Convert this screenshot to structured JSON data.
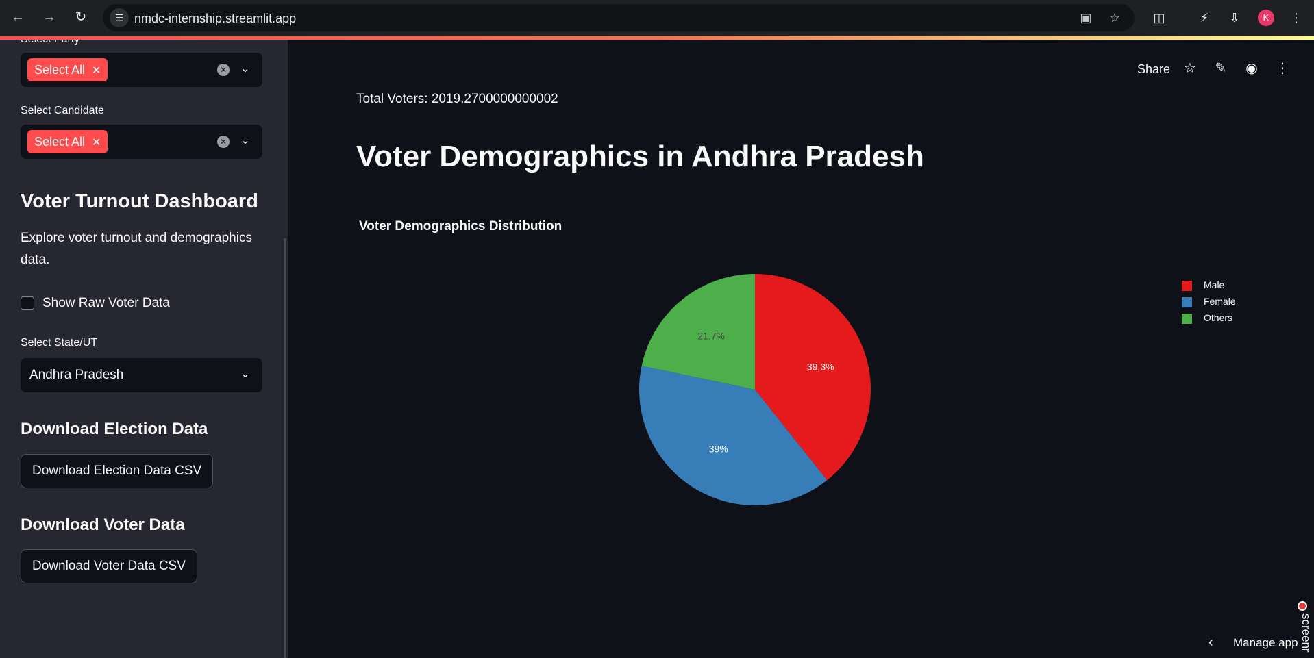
{
  "browser": {
    "url": "nmdc-internship.streamlit.app",
    "profile_initial": "K"
  },
  "sidebar": {
    "party_label_cut": "Select Party",
    "party_tag": "Select All",
    "candidate_label": "Select Candidate",
    "candidate_tag": "Select All",
    "dashboard_heading": "Voter Turnout Dashboard",
    "description": "Explore voter turnout and demographics data.",
    "raw_data_label": "Show Raw Voter Data",
    "state_label": "Select State/UT",
    "state_value": "Andhra Pradesh",
    "download_election_heading": "Download Election Data",
    "download_election_button": "Download Election Data CSV",
    "download_voter_heading": "Download Voter Data",
    "download_voter_button": "Download Voter Data CSV"
  },
  "header": {
    "share_label": "Share"
  },
  "main": {
    "total_voters": "Total Voters: 2019.2700000000002",
    "title": "Voter Demographics in Andhra Pradesh",
    "chart_title": "Voter Demographics Distribution"
  },
  "footer": {
    "manage_app": "Manage app",
    "recording_label": "screenr"
  },
  "chart_data": {
    "type": "pie",
    "title": "Voter Demographics Distribution",
    "categories": [
      "Male",
      "Female",
      "Others"
    ],
    "values": [
      39.3,
      39,
      21.7
    ],
    "labels": [
      "39.3%",
      "39%",
      "21.7%"
    ],
    "colors": [
      "#e41a1c",
      "#377eb8",
      "#4daf4a"
    ],
    "label_colors": [
      "#ffffff",
      "#ffffff",
      "#444444"
    ],
    "legend": "right",
    "direction": "clockwise",
    "start": "top"
  }
}
